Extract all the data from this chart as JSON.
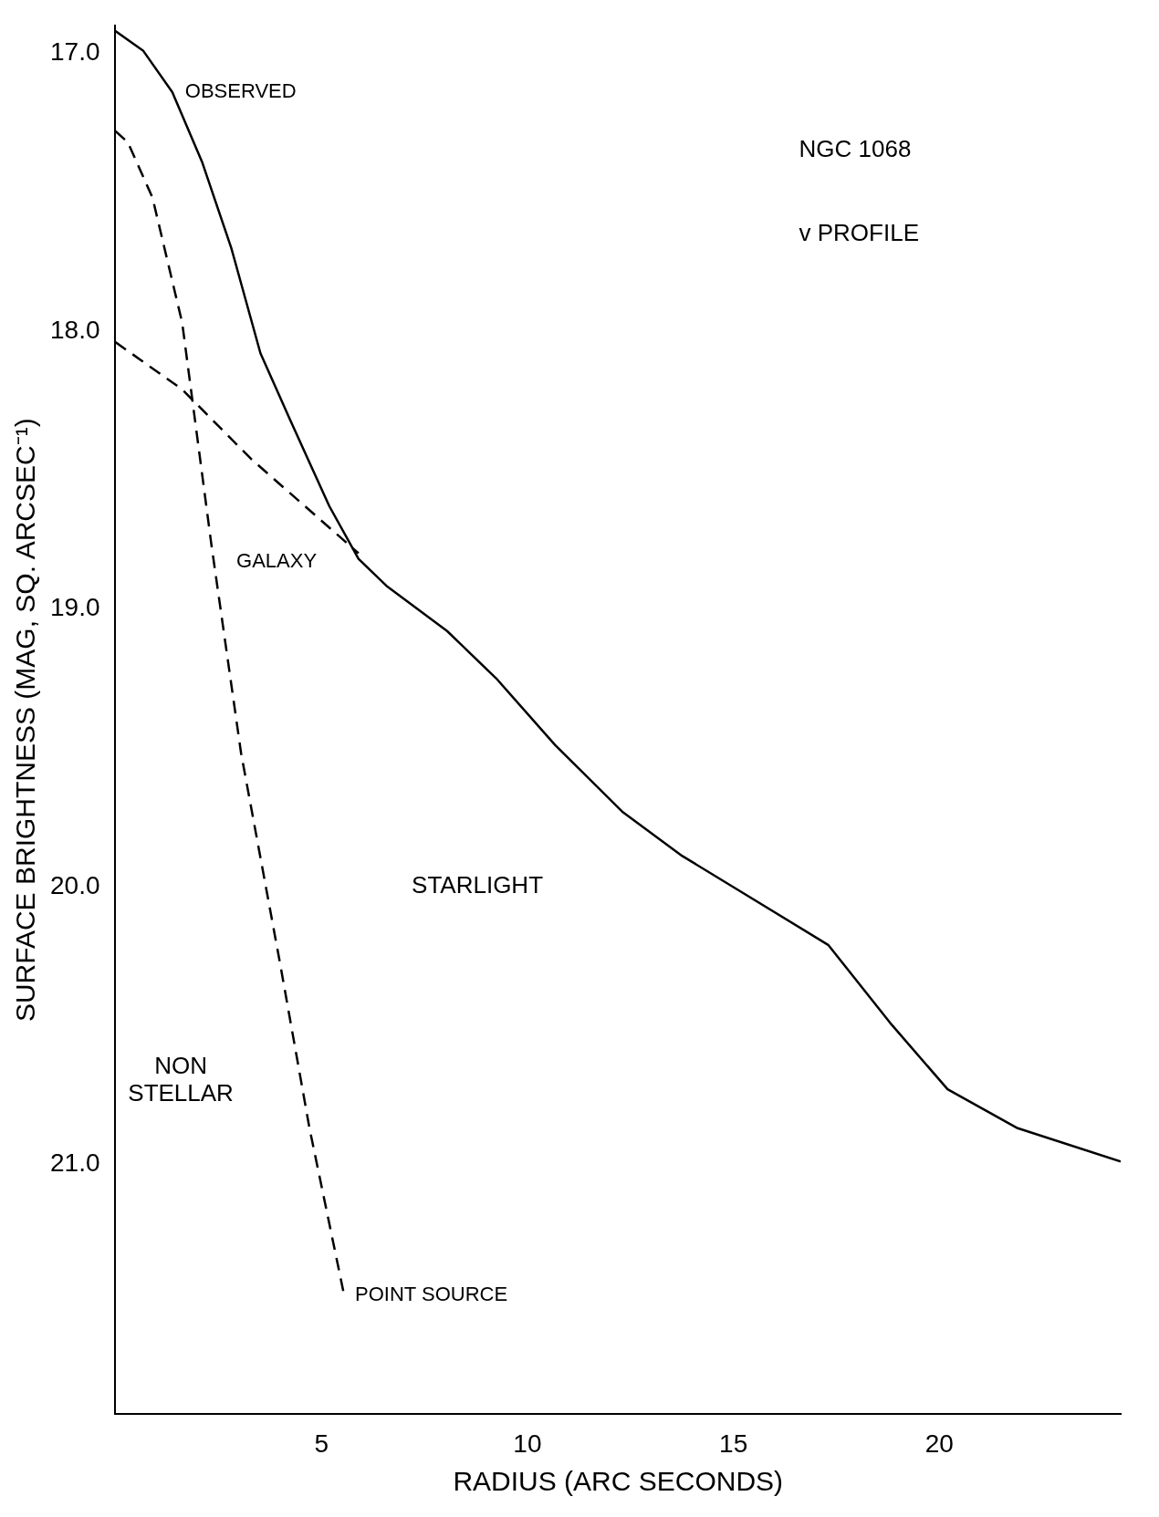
{
  "chart_data": {
    "type": "line",
    "xlabel": "RADIUS (ARC SECONDS)",
    "ylabel": "SURFACE BRIGHTNESS (MAG, SQ. ARCSEC⁻¹)",
    "xlim": [
      0,
      24.4
    ],
    "xticks": [
      5,
      10,
      15,
      20
    ],
    "ylim": [
      21.9,
      16.9
    ],
    "yticks": [
      {
        "value": 17,
        "label": "17.0"
      },
      {
        "value": 18,
        "label": "18.0"
      },
      {
        "value": 19,
        "label": "19.0"
      },
      {
        "value": 20,
        "label": "20.0"
      },
      {
        "value": 21,
        "label": "21.0"
      }
    ],
    "grid": false,
    "legend": false,
    "marker": "none",
    "series": [
      {
        "name": "OBSERVED",
        "color": "#000000",
        "line_style": "solid",
        "x": [
          0,
          0.67,
          1.38,
          2.1,
          2.81,
          3.52,
          4.24,
          5.19,
          5.9,
          6.6,
          8.05,
          9.24,
          10.67,
          12.3,
          13.76,
          15.2,
          17.3,
          18.8,
          20.2,
          21.9,
          24.4
        ],
        "values": [
          16.92,
          16.99,
          17.14,
          17.39,
          17.7,
          18.08,
          18.32,
          18.63,
          18.82,
          18.92,
          19.08,
          19.25,
          19.49,
          19.73,
          19.89,
          20.02,
          20.21,
          20.49,
          20.73,
          20.87,
          20.99
        ]
      },
      {
        "name": "POINT SOURCE",
        "color": "#000000",
        "line_style": "dashed",
        "x": [
          0,
          0.3,
          0.9,
          1.62,
          2.33,
          3.05,
          4.0,
          4.71,
          5.55
        ],
        "values": [
          17.28,
          17.32,
          17.52,
          17.97,
          18.77,
          19.52,
          20.28,
          20.87,
          21.47
        ]
      },
      {
        "name": "GALAXY",
        "color": "#000000",
        "line_style": "dashed",
        "x": [
          0,
          1.62,
          3.29,
          5.9
        ],
        "values": [
          18.04,
          18.21,
          18.46,
          18.8
        ]
      }
    ],
    "annotations": [
      "NGC 1068",
      "v PROFILE",
      "STARLIGHT",
      "NON STELLAR"
    ]
  }
}
